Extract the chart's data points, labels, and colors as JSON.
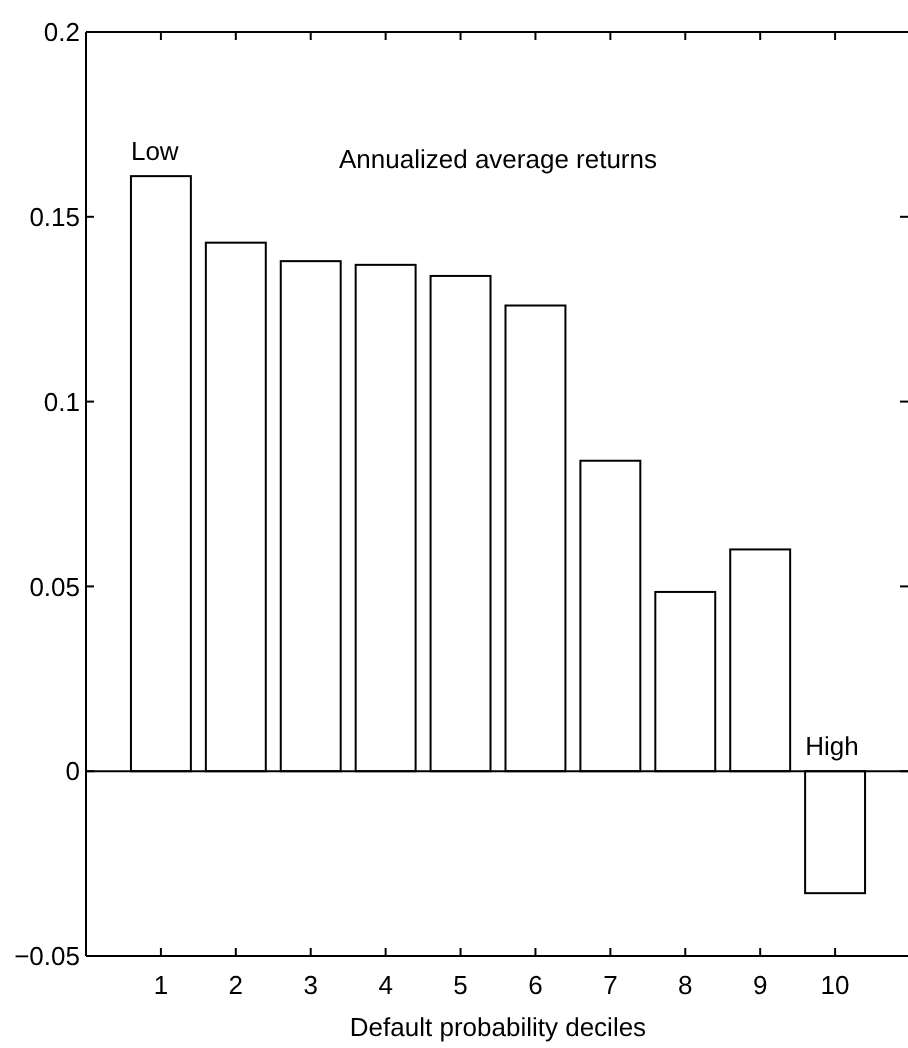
{
  "chart_data": {
    "type": "bar",
    "title": "Annualized average returns",
    "xlabel": "Default probability deciles",
    "categories": [
      "1",
      "2",
      "3",
      "4",
      "5",
      "6",
      "7",
      "8",
      "9",
      "10"
    ],
    "values": [
      0.161,
      0.143,
      0.138,
      0.137,
      0.134,
      0.126,
      0.084,
      0.0485,
      0.06,
      -0.033
    ],
    "color": "#ffffff",
    "ylim": [
      -0.05,
      0.2
    ],
    "yticks": [
      {
        "value": -0.05,
        "label": "−0.05"
      },
      0,
      0.05,
      0.1,
      0.15,
      0.2
    ],
    "annotations": [
      {
        "text": "Low",
        "x": "1",
        "y": 0.161
      },
      {
        "text": "High",
        "x": "10",
        "y": 0
      }
    ]
  }
}
